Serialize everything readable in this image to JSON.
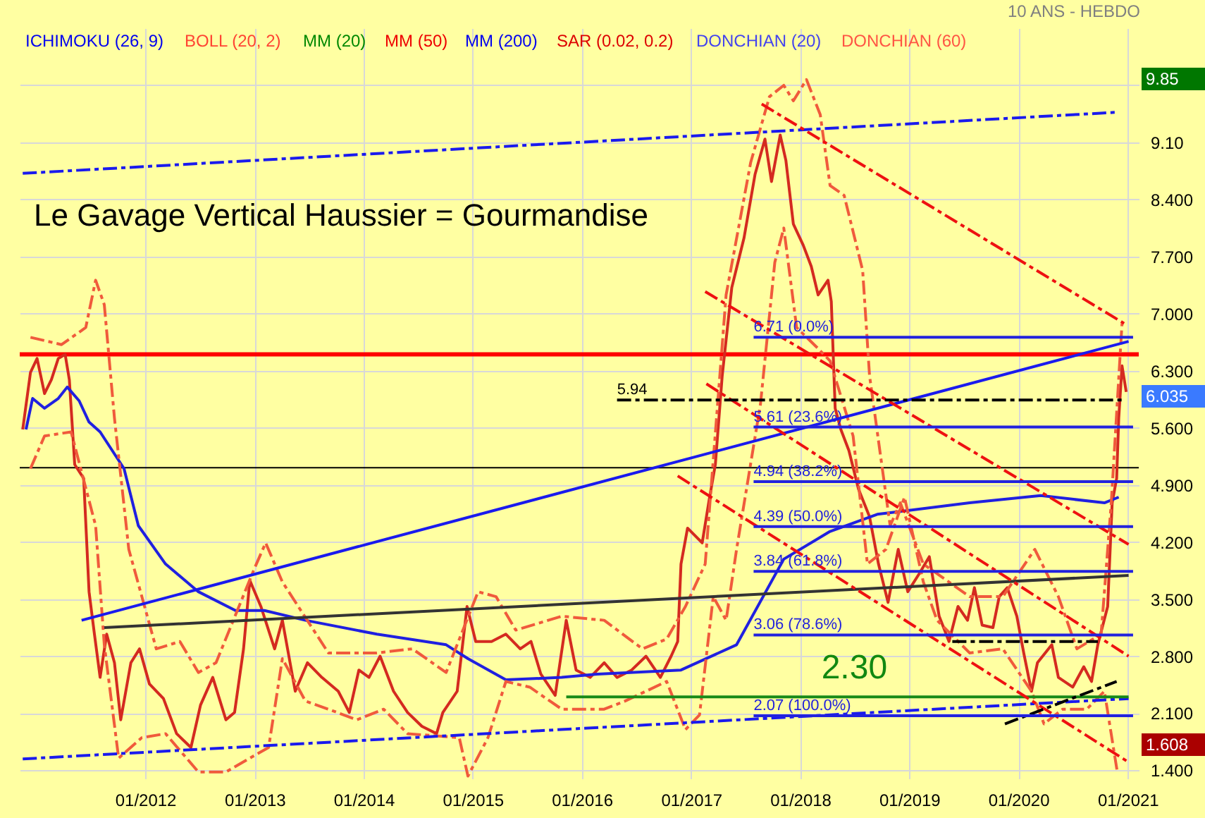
{
  "chart_data": {
    "type": "line",
    "title": "Le Gavage Vertical Haussier = Gourmandise",
    "subtitle": "10 ANS - HEBDO",
    "xlim": [
      "2010-11-07",
      "2021-02-07"
    ],
    "ylim": [
      1.3,
      10.5
    ],
    "xticks": [
      {
        "value": "2012-01-01",
        "label": "01/2012"
      },
      {
        "value": "2013-01-01",
        "label": "01/2013"
      },
      {
        "value": "2014-01-01",
        "label": "01/2014"
      },
      {
        "value": "2015-01-01",
        "label": "01/2015"
      },
      {
        "value": "2016-01-01",
        "label": "01/2016"
      },
      {
        "value": "2017-01-01",
        "label": "01/2017"
      },
      {
        "value": "2018-01-01",
        "label": "01/2018"
      },
      {
        "value": "2019-01-01",
        "label": "01/2019"
      },
      {
        "value": "2020-01-01",
        "label": "01/2020"
      },
      {
        "value": "2021-01-01",
        "label": "01/2021"
      }
    ],
    "yticks": [
      {
        "value": 1.4,
        "label": "1.400"
      },
      {
        "value": 2.1,
        "label": "2.100"
      },
      {
        "value": 2.8,
        "label": "2.800"
      },
      {
        "value": 3.5,
        "label": "3.500"
      },
      {
        "value": 4.2,
        "label": "4.200"
      },
      {
        "value": 4.9,
        "label": "4.900"
      },
      {
        "value": 5.6,
        "label": "5.600"
      },
      {
        "value": 6.3,
        "label": "6.300"
      },
      {
        "value": 7.0,
        "label": "7.000"
      },
      {
        "value": 7.7,
        "label": "7.700"
      },
      {
        "value": 8.4,
        "label": "8.400"
      },
      {
        "value": 9.1,
        "label": "9.10"
      },
      {
        "value": 9.8,
        "label": null
      }
    ],
    "grid": true,
    "series": [
      {
        "color": "#d42a20",
        "x": [
          "2010-11-17",
          "2010-12-13",
          "2011-01-04",
          "2011-01-29",
          "2011-02-21",
          "2011-03-16",
          "2011-04-08",
          "2011-04-22",
          "2011-05-10",
          "2011-06-09",
          "2011-06-27",
          "2011-07-15",
          "2011-08-03",
          "2011-08-25",
          "2011-09-20",
          "2011-10-11",
          "2011-11-14",
          "2011-12-13",
          "2012-01-15",
          "2012-03-02",
          "2012-04-15",
          "2012-06-02",
          "2012-07-04",
          "2012-08-14",
          "2012-09-27",
          "2012-10-26",
          "2012-11-25",
          "2012-12-16",
          "2013-01-22",
          "2013-03-09",
          "2013-04-04",
          "2013-05-17",
          "2013-06-27",
          "2013-08-14",
          "2013-10-08",
          "2013-11-14",
          "2013-12-16",
          "2014-01-19",
          "2014-02-25",
          "2014-04-11",
          "2014-05-28",
          "2014-07-15",
          "2014-09-02",
          "2014-09-23",
          "2014-11-10",
          "2014-12-13",
          "2015-01-11",
          "2015-02-14",
          "2015-03-05",
          "2015-04-22",
          "2015-06-09",
          "2015-07-15",
          "2015-08-17",
          "2015-10-04",
          "2015-11-10",
          "2015-12-13",
          "2016-01-29",
          "2016-03-16",
          "2016-04-28",
          "2016-06-16",
          "2016-08-03",
          "2016-09-20",
          "2016-10-26",
          "2016-11-17",
          "2016-11-28",
          "2016-12-20",
          "2017-02-07",
          "2017-03-02",
          "2017-03-23",
          "2017-04-15",
          "2017-05-17",
          "2017-06-27",
          "2017-08-03",
          "2017-09-05",
          "2017-09-27",
          "2017-10-26",
          "2017-11-14",
          "2017-12-09",
          "2018-01-11",
          "2018-02-07",
          "2018-03-02",
          "2018-04-04",
          "2018-04-15",
          "2018-04-28",
          "2018-05-17",
          "2018-06-13",
          "2018-07-15",
          "2018-08-21",
          "2018-09-20",
          "2018-10-22",
          "2018-11-25",
          "2018-12-27",
          "2019-02-03",
          "2019-03-09",
          "2019-04-11",
          "2019-05-14",
          "2019-06-13",
          "2019-07-15",
          "2019-08-07",
          "2019-09-02",
          "2019-10-08",
          "2019-10-29",
          "2019-11-25",
          "2019-12-27",
          "2020-01-19",
          "2020-02-14",
          "2020-03-05",
          "2020-04-22",
          "2020-05-14",
          "2020-07-01",
          "2020-08-07",
          "2020-09-02",
          "2020-09-23",
          "2020-10-26",
          "2020-11-10",
          "2020-11-25",
          "2020-12-02",
          "2020-12-13",
          "2020-12-27"
        ],
        "values": [
          5.58,
          6.28,
          6.45,
          6.02,
          6.19,
          6.45,
          6.5,
          6.19,
          5.15,
          4.98,
          3.59,
          3.07,
          2.54,
          3.07,
          2.72,
          2.02,
          2.72,
          2.89,
          2.46,
          2.28,
          1.85,
          1.68,
          2.2,
          2.54,
          2.02,
          2.11,
          2.89,
          3.73,
          3.41,
          2.89,
          3.24,
          2.37,
          2.72,
          2.54,
          2.37,
          2.11,
          2.63,
          2.54,
          2.8,
          2.37,
          2.11,
          1.94,
          1.85,
          2.11,
          2.37,
          3.41,
          2.98,
          2.98,
          2.98,
          3.07,
          2.89,
          2.98,
          2.58,
          2.32,
          3.24,
          2.63,
          2.54,
          2.72,
          2.54,
          2.63,
          2.8,
          2.54,
          2.8,
          2.98,
          3.93,
          4.37,
          4.19,
          4.71,
          5.15,
          6.24,
          7.32,
          7.93,
          8.71,
          9.14,
          8.62,
          9.19,
          8.88,
          8.1,
          7.84,
          7.58,
          7.23,
          7.41,
          7.15,
          5.84,
          5.58,
          5.32,
          4.85,
          4.51,
          3.93,
          3.46,
          4.11,
          3.59,
          3.81,
          4.02,
          3.29,
          2.98,
          3.41,
          3.24,
          3.64,
          3.18,
          3.15,
          3.53,
          3.64,
          3.29,
          2.84,
          2.37,
          2.72,
          2.94,
          2.54,
          2.42,
          2.67,
          2.49,
          2.94,
          3.41,
          4.68,
          4.98,
          5.72,
          6.36,
          6.04
        ]
      },
      {
        "color": "#2020e0",
        "x": [
          "2010-11-28",
          "2010-12-20",
          "2011-01-29",
          "2011-03-16",
          "2011-04-15",
          "2011-05-25",
          "2011-06-27",
          "2011-08-03",
          "2011-10-22",
          "2011-12-09",
          "2012-03-09",
          "2012-06-27",
          "2012-10-29",
          "2013-02-03",
          "2013-06-20",
          "2014-02-14",
          "2014-10-04",
          "2014-12-16",
          "2015-04-22",
          "2015-10-26",
          "2016-02-21",
          "2016-11-28",
          "2017-06-02",
          "2017-11-07",
          "2018-04-11",
          "2018-09-16",
          "2019-07-22",
          "2020-03-16",
          "2020-10-15",
          "2020-12-02"
        ],
        "values": [
          5.58,
          5.96,
          5.84,
          5.96,
          6.1,
          5.93,
          5.67,
          5.55,
          5.1,
          4.4,
          3.93,
          3.59,
          3.36,
          3.36,
          3.24,
          3.07,
          2.94,
          2.77,
          2.51,
          2.54,
          2.58,
          2.63,
          2.94,
          3.99,
          4.33,
          4.54,
          4.68,
          4.77,
          4.68,
          4.75
        ]
      },
      {
        "color": "#f05a3c",
        "line_style": "dashed",
        "x": [
          "2010-12-13",
          "2011-03-27",
          "2011-06-16",
          "2011-07-19",
          "2011-08-17",
          "2011-09-20",
          "2011-11-07",
          "2012-02-07",
          "2012-04-26",
          "2012-06-27",
          "2012-08-25",
          "2013-01-01",
          "2013-02-07",
          "2013-04-04",
          "2013-09-05",
          "2014-02-14",
          "2014-06-13",
          "2014-10-04",
          "2015-01-19",
          "2015-03-20",
          "2015-05-25",
          "2015-10-26",
          "2016-03-16",
          "2016-07-22",
          "2016-10-11",
          "2016-12-13",
          "2017-02-17",
          "2017-04-28",
          "2017-07-19",
          "2017-09-20",
          "2017-11-07",
          "2017-12-09",
          "2018-01-22",
          "2018-03-09",
          "2018-04-11",
          "2018-05-28",
          "2018-07-29",
          "2018-08-21",
          "2018-10-29",
          "2018-12-02",
          "2019-02-17",
          "2019-07-22",
          "2019-11-10",
          "2020-02-25",
          "2020-05-14",
          "2020-07-15",
          "2020-10-04",
          "2020-11-07",
          "2020-12-13"
        ],
        "values": [
          6.71,
          6.62,
          6.83,
          7.41,
          7.11,
          5.72,
          4.11,
          2.89,
          2.98,
          2.6,
          2.72,
          3.88,
          4.19,
          3.71,
          2.84,
          2.84,
          2.89,
          2.6,
          3.59,
          3.53,
          3.12,
          3.29,
          3.24,
          2.89,
          3.01,
          3.41,
          3.93,
          7.23,
          8.85,
          9.66,
          9.8,
          9.61,
          9.87,
          9.44,
          8.57,
          8.45,
          7.53,
          6.24,
          4.4,
          4.68,
          3.93,
          3.53,
          3.53,
          4.11,
          3.53,
          2.89,
          3.07,
          4.68,
          6.88
        ]
      },
      {
        "color": "#f05a3c",
        "line_style": "dashed",
        "x": [
          "2010-12-13",
          "2011-01-29",
          "2011-04-28",
          "2011-07-19",
          "2011-08-17",
          "2011-10-04",
          "2011-12-20",
          "2012-03-09",
          "2012-06-27",
          "2012-09-27",
          "2012-12-16",
          "2013-02-17",
          "2013-04-04",
          "2013-06-20",
          "2013-09-05",
          "2013-12-09",
          "2014-03-09",
          "2014-05-28",
          "2014-11-17",
          "2014-12-16",
          "2015-02-21",
          "2015-04-22",
          "2015-07-11",
          "2015-10-26",
          "2016-03-16",
          "2016-05-25",
          "2016-10-11",
          "2016-12-13",
          "2017-01-29",
          "2017-03-16",
          "2017-04-28",
          "2017-06-02",
          "2017-08-21",
          "2017-10-08",
          "2017-11-07",
          "2017-12-20",
          "2018-02-25",
          "2018-04-11",
          "2018-06-27",
          "2018-08-14",
          "2018-10-15",
          "2018-12-16",
          "2019-02-17",
          "2019-04-04",
          "2019-07-22",
          "2019-11-10",
          "2020-02-14",
          "2020-03-27",
          "2020-05-28",
          "2020-08-17",
          "2020-10-15",
          "2020-11-28"
        ],
        "values": [
          5.1,
          5.5,
          5.55,
          4.4,
          2.94,
          1.55,
          1.8,
          1.85,
          1.38,
          1.38,
          1.55,
          1.68,
          2.77,
          2.25,
          2.15,
          2.02,
          2.15,
          1.85,
          1.8,
          1.33,
          1.8,
          2.49,
          2.42,
          2.15,
          2.15,
          2.25,
          2.49,
          1.9,
          2.08,
          3.53,
          3.24,
          4.11,
          5.89,
          7.63,
          8.05,
          6.83,
          6.59,
          6.42,
          5.5,
          3.93,
          4.11,
          4.75,
          3.71,
          3.24,
          2.84,
          2.89,
          2.37,
          1.97,
          2.15,
          2.15,
          2.37,
          1.36
        ]
      },
      {
        "color": "#1a1aee",
        "x": [
          "2011-06-02",
          "2021-01-04"
        ],
        "values": [
          3.24,
          6.66
        ]
      },
      {
        "color": "#1a1aee",
        "line_style": "dashed",
        "x": [
          "2010-11-17",
          "2020-11-28"
        ],
        "values": [
          8.72,
          9.47
        ]
      },
      {
        "color": "#1a1aee",
        "line_style": "dashed",
        "x": [
          "2010-11-17",
          "2021-01-04"
        ],
        "values": [
          1.54,
          2.28
        ]
      },
      {
        "color": "#333333",
        "x": [
          "2011-08-17",
          "2021-01-04"
        ],
        "values": [
          3.15,
          3.79
        ]
      },
      {
        "color": "#188a18",
        "x": [
          "2015-11-10",
          "2021-01-04"
        ],
        "values": [
          2.3,
          2.3
        ]
      },
      {
        "color": "#ee1111",
        "line_style": "dashed",
        "x": [
          "2017-02-17",
          "2021-01-04"
        ],
        "values": [
          7.27,
          4.17
        ]
      },
      {
        "color": "#ee1111",
        "line_style": "dashed",
        "x": [
          "2017-02-21",
          "2021-01-04"
        ],
        "values": [
          6.14,
          2.8
        ]
      },
      {
        "color": "#ee1111",
        "line_style": "dashed",
        "x": [
          "2016-11-17",
          "2021-01-04"
        ],
        "values": [
          5.01,
          1.5
        ]
      },
      {
        "color": "#ee1111",
        "line_style": "dashed",
        "x": [
          "2017-08-25",
          "2020-12-20"
        ],
        "values": [
          9.57,
          6.88
        ]
      },
      {
        "color": "#000000",
        "line_style": "dashed",
        "x": [
          "2016-04-28",
          "2020-12-13"
        ],
        "values": [
          5.94,
          5.94
        ]
      },
      {
        "color": "#000000",
        "line_style": "dashed",
        "x": [
          "2019-05-25",
          "2020-09-23"
        ],
        "values": [
          2.98,
          2.98
        ]
      },
      {
        "color": "#000000",
        "line_style": "dashed",
        "x": [
          "2019-11-17",
          "2020-11-25"
        ],
        "values": [
          1.97,
          2.49
        ]
      },
      {
        "color": "#2222dd",
        "x": [
          "2017-07-29",
          "2021-01-19"
        ],
        "values": [
          6.71,
          6.71
        ]
      },
      {
        "color": "#2222dd",
        "x": [
          "2017-07-29",
          "2021-01-19"
        ],
        "values": [
          5.61,
          5.61
        ]
      },
      {
        "color": "#2222dd",
        "x": [
          "2017-07-29",
          "2021-01-19"
        ],
        "values": [
          4.94,
          4.94
        ]
      },
      {
        "color": "#2222dd",
        "x": [
          "2017-07-29",
          "2021-01-19"
        ],
        "values": [
          4.39,
          4.39
        ]
      },
      {
        "color": "#2222dd",
        "x": [
          "2017-07-29",
          "2021-01-19"
        ],
        "values": [
          3.84,
          3.84
        ]
      },
      {
        "color": "#2222dd",
        "x": [
          "2017-07-29",
          "2021-01-19"
        ],
        "values": [
          3.06,
          3.06
        ]
      },
      {
        "color": "#2222dd",
        "x": [
          "2017-07-29",
          "2021-01-19"
        ],
        "values": [
          2.07,
          2.07
        ]
      }
    ],
    "ref_lines": [
      {
        "axis": "y",
        "value": 6.5,
        "color": "#ff0000"
      },
      {
        "axis": "y",
        "value": 5.11,
        "color": "#000000"
      }
    ],
    "annotations": [
      "ICHIMOKU (26, 9)",
      "BOLL (20, 2)",
      "MM (20)",
      "MM (50)",
      "MM (200)",
      "SAR (0.02, 0.2)",
      "DONCHIAN (20)",
      "DONCHIAN (60)",
      "9.85",
      "6.035",
      "1.608",
      {
        "text": "6.71  (0.0%)",
        "x": "2017-07-29",
        "y": 6.71
      },
      {
        "text": "5.61  (23.6%)",
        "x": "2017-07-29",
        "y": 5.61
      },
      {
        "text": "4.94  (38.2%)",
        "x": "2017-07-29",
        "y": 4.94
      },
      {
        "text": "4.39  (50.0%)",
        "x": "2017-07-29",
        "y": 4.39
      },
      {
        "text": "3.84  (61.8%)",
        "x": "2017-07-29",
        "y": 3.84
      },
      {
        "text": "3.06  (78.6%)",
        "x": "2017-07-29",
        "y": 3.06
      },
      {
        "text": "2.07  (100.0%)",
        "x": "2017-07-29",
        "y": 2.07
      },
      {
        "text": "5.94",
        "x": "2016-04-28",
        "y": 5.94
      },
      {
        "text": "2.30",
        "x": "2018-03-13",
        "y": 2.3
      }
    ]
  }
}
